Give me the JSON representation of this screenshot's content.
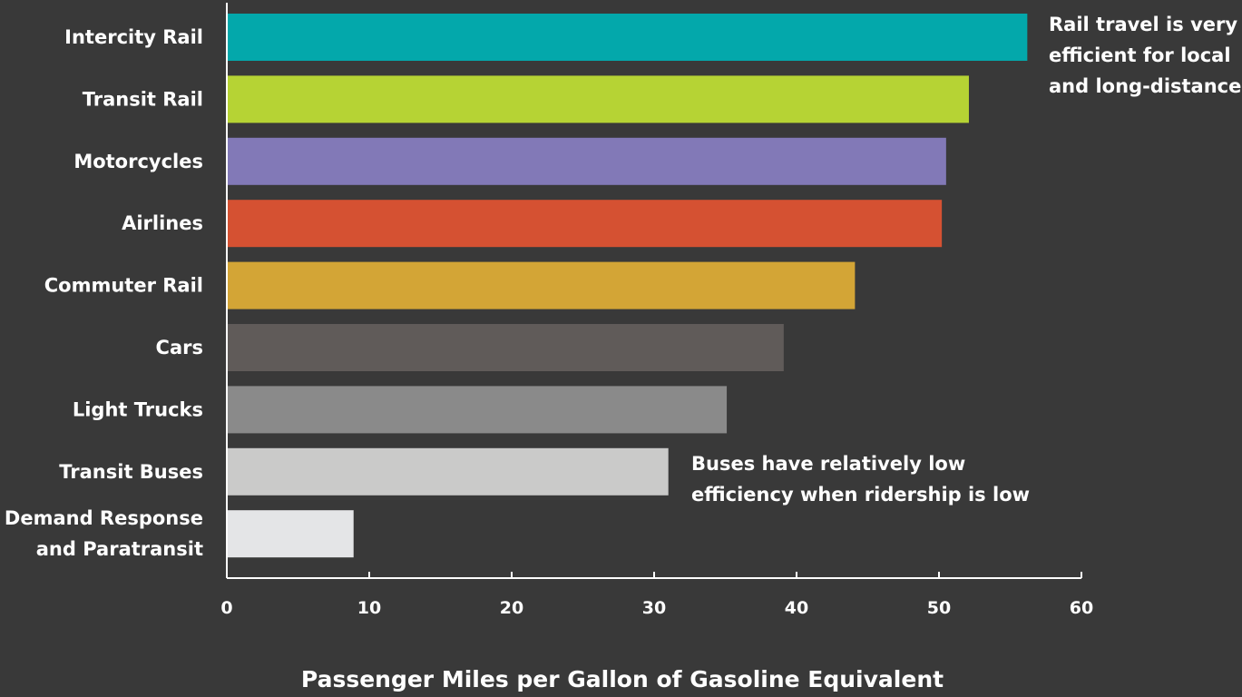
{
  "chart_data": {
    "type": "bar",
    "orientation": "horizontal",
    "categories": [
      [
        "Intercity Rail"
      ],
      [
        "Transit Rail"
      ],
      [
        "Motorcycles"
      ],
      [
        "Airlines"
      ],
      [
        "Commuter Rail"
      ],
      [
        "Cars"
      ],
      [
        "Light Trucks"
      ],
      [
        "Transit Buses"
      ],
      [
        "Demand Response",
        "and Paratransit"
      ]
    ],
    "values": [
      56.2,
      52.1,
      50.5,
      50.2,
      44.1,
      39.1,
      35.1,
      31.0,
      8.9
    ],
    "colors": [
      "#03a8ab",
      "#b6d334",
      "#8279b7",
      "#d55132",
      "#d3a536",
      "#605b59",
      "#8a8a8a",
      "#cacac9",
      "#e4e5e7"
    ],
    "xlabel": "Passenger Miles per Gallon of Gasoline Equivalent",
    "xlim": [
      0,
      60
    ],
    "xticks": [
      0,
      10,
      20,
      30,
      40,
      50,
      60
    ],
    "grid": false,
    "annotations": [
      {
        "lines": [
          "Rail travel is very",
          "efficient for local",
          "and long-distance"
        ],
        "near": "Intercity Rail"
      },
      {
        "lines": [
          "Buses have relatively low",
          "efficiency when ridership is low"
        ],
        "near": "Transit Buses"
      }
    ]
  }
}
